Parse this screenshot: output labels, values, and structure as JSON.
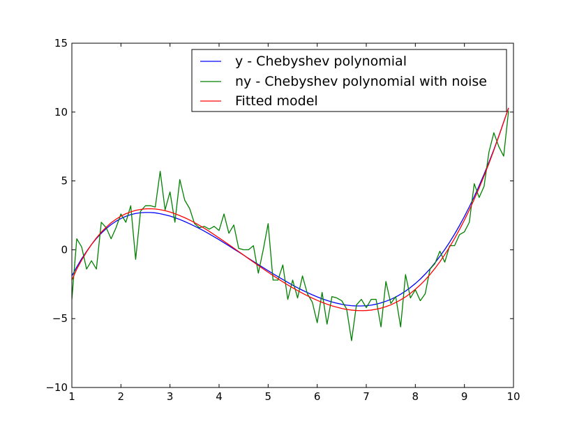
{
  "chart_data": {
    "type": "line",
    "title": "",
    "xlabel": "",
    "ylabel": "",
    "xlim": [
      1,
      10
    ],
    "ylim": [
      -10,
      15
    ],
    "grid": false,
    "legend_position": "top-right",
    "x_ticks": [
      1,
      2,
      3,
      4,
      5,
      6,
      7,
      8,
      9,
      10
    ],
    "y_ticks": [
      -10,
      -5,
      0,
      5,
      10,
      15
    ],
    "x_tick_labels": [
      "1",
      "2",
      "3",
      "4",
      "5",
      "6",
      "7",
      "8",
      "9",
      "10"
    ],
    "y_tick_labels": [
      "−10",
      "−5",
      "0",
      "5",
      "10",
      "15"
    ],
    "x": [
      1.0,
      1.1,
      1.2,
      1.3,
      1.4,
      1.5,
      1.6,
      1.7,
      1.8,
      1.9,
      2.0,
      2.1,
      2.2,
      2.3,
      2.4,
      2.5,
      2.6,
      2.7,
      2.8,
      2.9,
      3.0,
      3.1,
      3.2,
      3.3,
      3.4,
      3.5,
      3.6,
      3.7,
      3.8,
      3.9,
      4.0,
      4.1,
      4.2,
      4.3,
      4.4,
      4.5,
      4.6,
      4.7,
      4.8,
      4.9,
      5.0,
      5.1,
      5.2,
      5.3,
      5.4,
      5.5,
      5.6,
      5.7,
      5.8,
      5.9,
      6.0,
      6.1,
      6.2,
      6.3,
      6.4,
      6.5,
      6.6,
      6.7,
      6.8,
      6.9,
      7.0,
      7.1,
      7.2,
      7.3,
      7.4,
      7.5,
      7.6,
      7.7,
      7.8,
      7.9,
      8.0,
      8.1,
      8.2,
      8.3,
      8.4,
      8.5,
      8.6,
      8.7,
      8.8,
      8.9,
      9.0,
      9.1,
      9.2,
      9.3,
      9.4,
      9.5,
      9.6,
      9.7,
      9.8,
      9.9
    ],
    "series": [
      {
        "name": "y - Chebyshev polynomial",
        "color": "#0000ff",
        "values": [
          -1.9,
          -1.25,
          -0.65,
          -0.12,
          0.38,
          0.82,
          1.2,
          1.54,
          1.83,
          2.07,
          2.27,
          2.43,
          2.55,
          2.64,
          2.69,
          2.71,
          2.71,
          2.68,
          2.62,
          2.54,
          2.45,
          2.33,
          2.2,
          2.05,
          1.89,
          1.72,
          1.54,
          1.35,
          1.15,
          0.94,
          0.73,
          0.51,
          0.29,
          0.06,
          -0.16,
          -0.39,
          -0.62,
          -0.85,
          -1.07,
          -1.3,
          -1.52,
          -1.74,
          -1.95,
          -2.16,
          -2.37,
          -2.57,
          -2.76,
          -2.94,
          -3.11,
          -3.27,
          -3.42,
          -3.56,
          -3.68,
          -3.79,
          -3.88,
          -3.96,
          -4.02,
          -4.06,
          -4.08,
          -4.08,
          -4.06,
          -4.02,
          -3.95,
          -3.86,
          -3.74,
          -3.6,
          -3.43,
          -3.23,
          -3.0,
          -2.74,
          -2.45,
          -2.13,
          -1.77,
          -1.38,
          -0.95,
          -0.48,
          0.02,
          0.56,
          1.14,
          1.76,
          2.42,
          3.12,
          3.86,
          4.65,
          5.48,
          6.36,
          7.28,
          8.25,
          9.27,
          10.3
        ]
      },
      {
        "name": "ny - Chebyshev polynomial with noise",
        "color": "#008000",
        "values": [
          -3.6,
          0.8,
          0.2,
          -1.4,
          -0.8,
          -1.4,
          2.0,
          1.6,
          0.8,
          1.6,
          2.6,
          2.0,
          3.2,
          -0.7,
          2.8,
          3.2,
          3.2,
          3.1,
          5.7,
          2.9,
          4.2,
          2.0,
          5.1,
          3.6,
          3.0,
          1.9,
          1.6,
          1.7,
          1.5,
          1.7,
          1.4,
          2.6,
          1.2,
          1.8,
          0.1,
          0.0,
          0.0,
          0.3,
          -1.7,
          0.0,
          1.9,
          -2.2,
          -2.2,
          -1.1,
          -3.6,
          -2.2,
          -3.5,
          -1.9,
          -3.2,
          -3.8,
          -5.3,
          -3.1,
          -5.4,
          -3.4,
          -3.5,
          -3.7,
          -4.3,
          -6.6,
          -4.0,
          -3.6,
          -4.2,
          -3.6,
          -3.6,
          -5.6,
          -2.3,
          -3.9,
          -3.4,
          -5.6,
          -1.8,
          -3.5,
          -2.9,
          -3.7,
          -3.2,
          -1.4,
          -1.0,
          -0.1,
          -0.9,
          0.3,
          0.3,
          1.1,
          1.3,
          2.0,
          4.8,
          3.8,
          4.6,
          7.1,
          8.5,
          7.5,
          6.8,
          10.1
        ]
      },
      {
        "name": "Fitted model",
        "color": "#ff0000",
        "values": [
          -2.2,
          -1.4,
          -0.75,
          -0.15,
          0.38,
          0.86,
          1.28,
          1.64,
          1.96,
          2.22,
          2.44,
          2.62,
          2.75,
          2.86,
          2.93,
          2.97,
          2.98,
          2.96,
          2.91,
          2.84,
          2.74,
          2.62,
          2.48,
          2.33,
          2.16,
          1.97,
          1.77,
          1.56,
          1.34,
          1.1,
          0.86,
          0.62,
          0.37,
          0.12,
          -0.13,
          -0.38,
          -0.64,
          -0.89,
          -1.14,
          -1.39,
          -1.63,
          -1.87,
          -2.1,
          -2.33,
          -2.55,
          -2.76,
          -2.96,
          -3.16,
          -3.34,
          -3.51,
          -3.67,
          -3.82,
          -3.95,
          -4.07,
          -4.17,
          -4.26,
          -4.33,
          -4.38,
          -4.41,
          -4.42,
          -4.41,
          -4.38,
          -4.32,
          -4.24,
          -4.13,
          -4.0,
          -3.83,
          -3.64,
          -3.42,
          -3.16,
          -2.87,
          -2.55,
          -2.19,
          -1.79,
          -1.35,
          -0.87,
          -0.35,
          0.22,
          0.82,
          1.47,
          2.16,
          2.89,
          3.67,
          4.49,
          5.36,
          6.27,
          7.23,
          8.23,
          9.28,
          10.3
        ]
      }
    ]
  }
}
